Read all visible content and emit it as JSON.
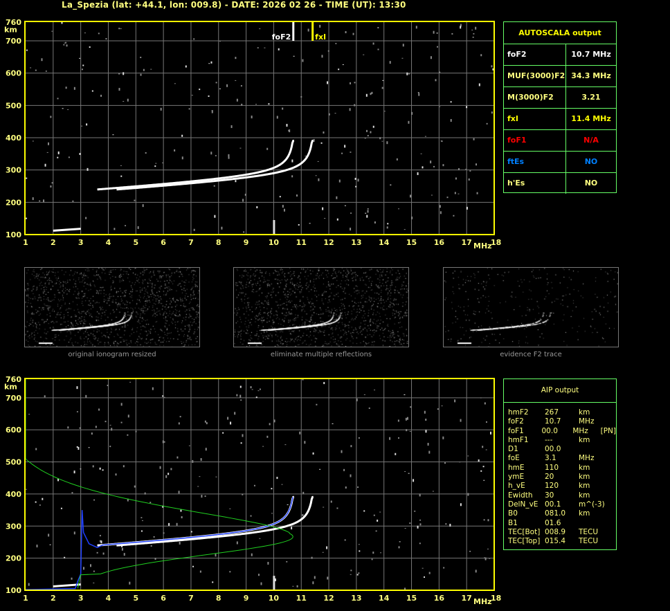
{
  "title": "La_Spezia (lat: +44.1, lon: 009.8) - DATE: 2026 02 26 - TIME (UT): 13:30",
  "axes": {
    "x_ticks": [
      "1",
      "2",
      "3",
      "4",
      "5",
      "6",
      "7",
      "8",
      "9",
      "10",
      "11",
      "12",
      "13",
      "14",
      "15",
      "16",
      "17",
      "18"
    ],
    "x_unit": "MHz",
    "y_ticks": [
      "760",
      "700",
      "600",
      "500",
      "400",
      "300",
      "200",
      "100"
    ],
    "y_unit": "km",
    "xlim": [
      1,
      18
    ],
    "ylim": [
      100,
      760
    ]
  },
  "markers": {
    "foF2_label": "foF2",
    "fxI_label": "fxI",
    "foF2": 10.7,
    "fxI": 11.4
  },
  "autoscala": {
    "header": "AUTOSCALA output",
    "rows": [
      {
        "key": "foF2",
        "value": "10.7 MHz",
        "color": "#ffffff"
      },
      {
        "key": "MUF(3000)F2",
        "value": "34.3 MHz",
        "color": "#ffff80"
      },
      {
        "key": "M(3000)F2",
        "value": "3.21",
        "color": "#ffff80"
      },
      {
        "key": "fxI",
        "value": "11.4 MHz",
        "color": "#ffff00"
      },
      {
        "key": "foF1",
        "value": "N/A",
        "color": "#ff0000"
      },
      {
        "key": "ftEs",
        "value": "NO",
        "color": "#0080ff"
      },
      {
        "key": "h'Es",
        "value": "NO",
        "color": "#ffff80"
      }
    ]
  },
  "thumbnails": [
    {
      "caption": "original ionogram resized"
    },
    {
      "caption": "eliminate multiple reflections"
    },
    {
      "caption": "evidence F2 trace"
    }
  ],
  "aip": {
    "header": "AIP output",
    "rows": [
      [
        "hmF2",
        "267",
        "km",
        ""
      ],
      [
        "foF2",
        "10.7",
        "MHz",
        ""
      ],
      [
        "foF1",
        "00.0",
        "MHz",
        "[PN]"
      ],
      [
        "hmF1",
        "---",
        "km",
        ""
      ],
      [
        "D1",
        "00.0",
        "",
        ""
      ],
      [
        "foE",
        "3.1",
        "MHz",
        ""
      ],
      [
        "hmE",
        "110",
        "km",
        ""
      ],
      [
        "ymE",
        "20",
        "km",
        ""
      ],
      [
        "h_vE",
        "120",
        "km",
        ""
      ],
      [
        "Ewidth",
        "30",
        "km",
        ""
      ],
      [
        "DelN_vE",
        "00.1",
        "m^(-3)",
        ""
      ],
      [
        "B0",
        "081.0",
        "km",
        ""
      ],
      [
        "B1",
        "01.6",
        "",
        ""
      ],
      [
        "TEC[Bot]",
        "008.9",
        "TECU",
        ""
      ],
      [
        "TEC[Top]",
        "015.4",
        "TECU",
        ""
      ]
    ]
  }
}
